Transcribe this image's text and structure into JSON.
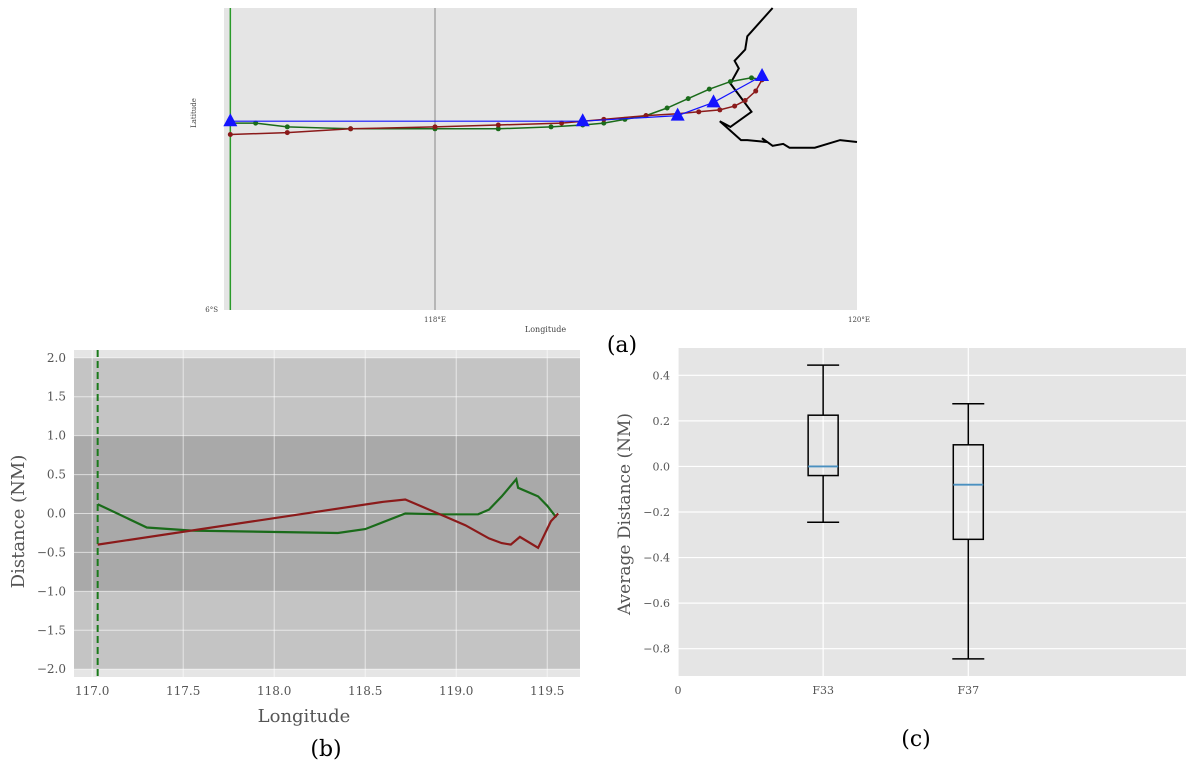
{
  "panel_labels": {
    "a": "(a)",
    "b": "(b)",
    "c": "(c)"
  },
  "colors": {
    "plot_bg": "#e5e5e5",
    "band_outer": "#c4c4c4",
    "band_inner": "#a9a9a9",
    "green": "#1a6b1a",
    "red": "#8b1a1a",
    "blue": "#1414ff",
    "median": "#4a90c0",
    "coast": "#000000"
  },
  "chart_data": [
    {
      "id": "a",
      "type": "line",
      "xlabel": "Longitude",
      "ylabel": "Latitude",
      "xticks": [
        "118°E",
        "120°E"
      ],
      "yticks": [
        "6°S"
      ],
      "xlim": [
        117.0,
        120.0
      ],
      "ylim": [
        -6.0,
        -4.4
      ],
      "grid_x": [
        118.0
      ],
      "reference_x": 117.03,
      "series": [
        {
          "key": "green",
          "x": [
            117.03,
            117.15,
            117.3,
            117.6,
            118.0,
            118.3,
            118.55,
            118.7,
            118.8,
            118.9,
            119.0,
            119.1,
            119.2,
            119.3,
            119.4,
            119.5,
            119.55
          ],
          "y": [
            -5.01,
            -5.01,
            -5.03,
            -5.04,
            -5.04,
            -5.04,
            -5.03,
            -5.02,
            -5.01,
            -4.99,
            -4.97,
            -4.93,
            -4.88,
            -4.83,
            -4.79,
            -4.77,
            -4.78
          ]
        },
        {
          "key": "red",
          "x": [
            117.03,
            117.3,
            117.6,
            118.0,
            118.3,
            118.6,
            118.8,
            119.0,
            119.15,
            119.25,
            119.35,
            119.42,
            119.47,
            119.52,
            119.55
          ],
          "y": [
            -5.07,
            -5.06,
            -5.04,
            -5.03,
            -5.02,
            -5.01,
            -4.99,
            -4.97,
            -4.96,
            -4.95,
            -4.94,
            -4.92,
            -4.89,
            -4.84,
            -4.78
          ]
        },
        {
          "key": "blue",
          "x": [
            117.03,
            118.7,
            119.15,
            119.32,
            119.55
          ],
          "y": [
            -5.0,
            -5.0,
            -4.97,
            -4.9,
            -4.76
          ]
        }
      ],
      "coastline": {
        "x": [
          119.6,
          119.48,
          119.47,
          119.42,
          119.44,
          119.4,
          119.5,
          119.4,
          119.35,
          119.45,
          119.48,
          119.57,
          119.55,
          119.6,
          119.65,
          119.68,
          119.8,
          119.92,
          120.0
        ],
        "y": [
          -4.4,
          -4.55,
          -4.62,
          -4.68,
          -4.72,
          -4.8,
          -4.95,
          -5.03,
          -5.0,
          -5.1,
          -5.1,
          -5.11,
          -5.09,
          -5.13,
          -5.12,
          -5.14,
          -5.14,
          -5.1,
          -5.11
        ]
      }
    },
    {
      "id": "b",
      "type": "line",
      "xlabel": "Longitude",
      "ylabel": "Distance (NM)",
      "xlim": [
        116.9,
        119.68
      ],
      "ylim": [
        -2.1,
        2.1
      ],
      "xticks": [
        117.0,
        117.5,
        118.0,
        118.5,
        119.0,
        119.5
      ],
      "yticks": [
        2.0,
        1.5,
        1.0,
        0.5,
        0.0,
        -0.5,
        -1.0,
        -1.5,
        -2.0
      ],
      "xtick_labels": [
        "117.0",
        "117.5",
        "118.0",
        "118.5",
        "119.0",
        "119.5"
      ],
      "ytick_labels": [
        "2.0",
        "1.5",
        "1.0",
        "0.5",
        "0.0",
        "−0.5",
        "−1.0",
        "−1.5",
        "−2.0"
      ],
      "bands": [
        {
          "from": -2.0,
          "to": 2.0,
          "key": "band_outer"
        },
        {
          "from": -1.0,
          "to": 1.0,
          "key": "band_inner"
        }
      ],
      "reference_x": 117.03,
      "series": [
        {
          "key": "green",
          "x": [
            117.03,
            117.3,
            117.55,
            118.35,
            118.5,
            118.72,
            118.92,
            119.12,
            119.18,
            119.25,
            119.33,
            119.34,
            119.45,
            119.5,
            119.55
          ],
          "y": [
            0.12,
            -0.18,
            -0.22,
            -0.25,
            -0.2,
            0.0,
            -0.01,
            -0.01,
            0.05,
            0.22,
            0.44,
            0.33,
            0.22,
            0.1,
            -0.05
          ]
        },
        {
          "key": "red",
          "x": [
            117.03,
            118.6,
            118.72,
            118.82,
            118.95,
            119.05,
            119.18,
            119.25,
            119.3,
            119.35,
            119.45,
            119.52,
            119.56
          ],
          "y": [
            -0.4,
            0.15,
            0.18,
            0.08,
            -0.05,
            -0.15,
            -0.32,
            -0.38,
            -0.4,
            -0.3,
            -0.44,
            -0.1,
            0.0
          ]
        }
      ]
    },
    {
      "id": "c",
      "type": "box",
      "ylabel": "Average Distance (NM)",
      "xlim": [
        0,
        3.5
      ],
      "ylim": [
        -0.92,
        0.52
      ],
      "xticks": [
        0,
        1.0,
        2.0
      ],
      "xtick_labels": [
        "0",
        "F33",
        "F37"
      ],
      "yticks": [
        0.4,
        0.2,
        0.0,
        -0.2,
        -0.4,
        -0.6,
        -0.8
      ],
      "ytick_labels": [
        "0.4",
        "0.2",
        "0.0",
        "−0.2",
        "−0.4",
        "−0.6",
        "−0.8"
      ],
      "boxes": [
        {
          "name": "F33",
          "pos": 1.0,
          "whisker_low": -0.245,
          "q1": -0.04,
          "median": 0.0,
          "q3": 0.225,
          "whisker_high": 0.445
        },
        {
          "name": "F37",
          "pos": 2.0,
          "whisker_low": -0.845,
          "q1": -0.32,
          "median": -0.08,
          "q3": 0.095,
          "whisker_high": 0.275
        }
      ]
    }
  ]
}
